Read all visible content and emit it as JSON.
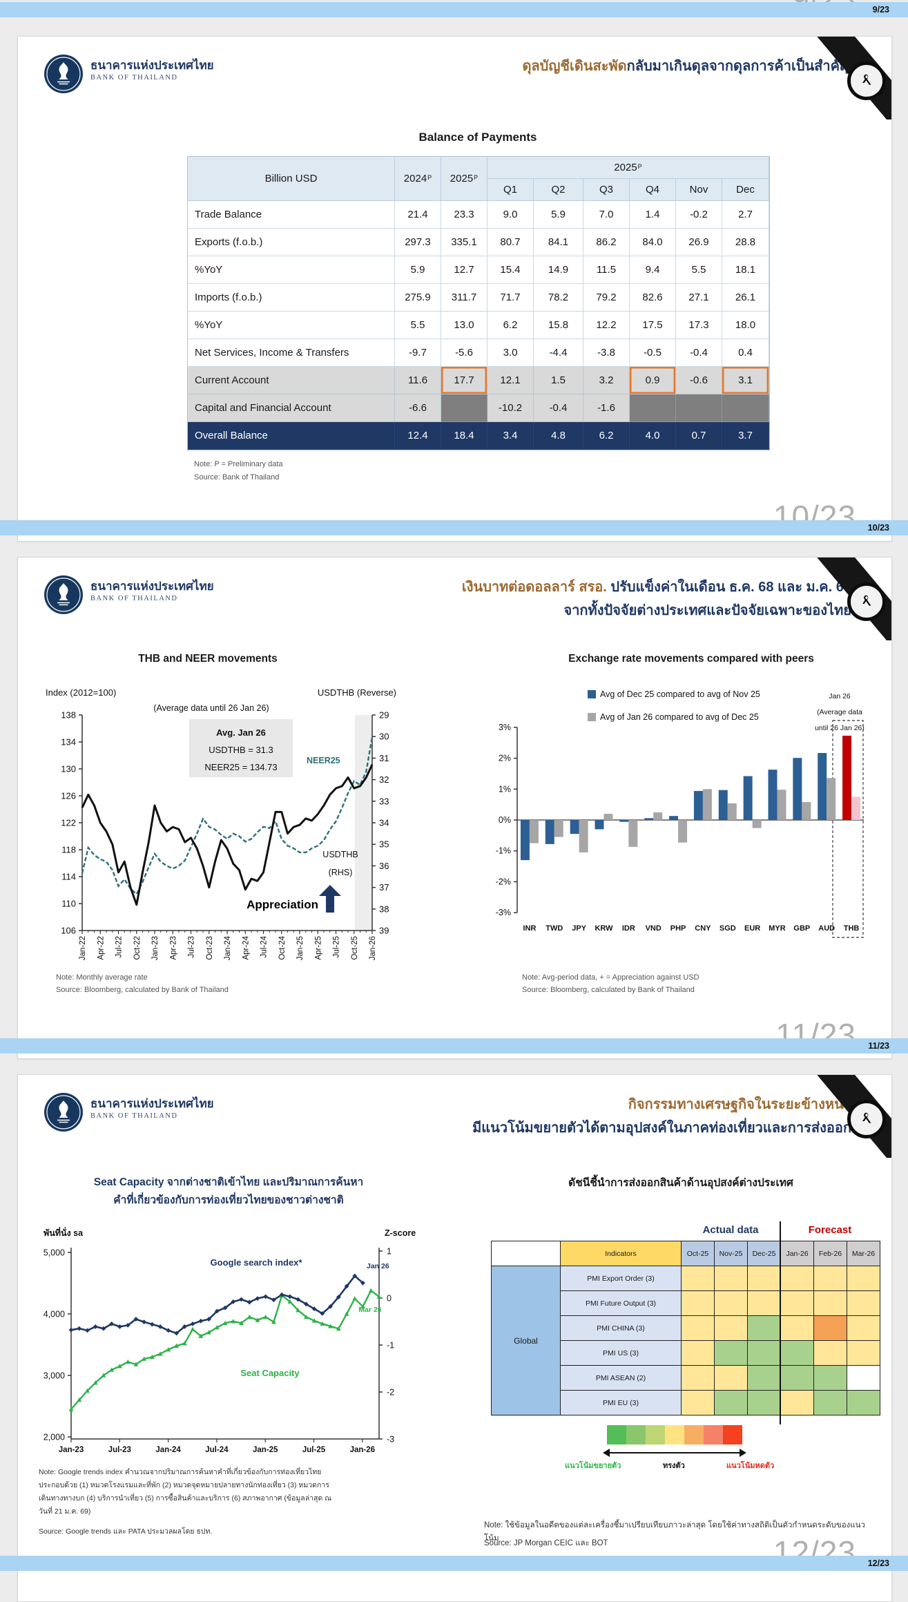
{
  "viewer": {
    "pagebreaks": [
      {
        "big": "9/23",
        "small": "9/23"
      },
      {
        "big": "10/23",
        "small": "10/23"
      },
      {
        "big": "11/23",
        "small": "11/23"
      },
      {
        "big": "12/23",
        "small": "12/23"
      }
    ]
  },
  "brand": {
    "name_th": "ธนาคารแห่งประเทศไทย",
    "name_en": "BANK OF THAILAND"
  },
  "colors": {
    "navy": "#1f3864",
    "brown": "#9c6a32",
    "bar_blue": "#2c5f94",
    "bar_gray": "#a6a6a6",
    "thb_red": "#c00000",
    "thb_pink": "#f2c4ce",
    "neer_teal": "#2e6f7a",
    "green": "#2eb34a",
    "divider_blue": "#a9d4f3",
    "orange_highlight": "#e8782a"
  },
  "slide9": {
    "header_title_brown": "ดุลบัญชีเดินสะพัด",
    "header_title_navy": "กลับมาเกินดุลจากดุลการค้าเป็นสำคัญ",
    "table": {
      "title": "Balance of Payments",
      "corner_label": "Billion USD",
      "year_cols": [
        "2024",
        "2025"
      ],
      "sup": "P",
      "group_col": "2025",
      "sub_cols": [
        "Q1",
        "Q2",
        "Q3",
        "Q4",
        "Nov",
        "Dec"
      ],
      "rows": [
        {
          "label": "Trade Balance",
          "values": [
            "21.4",
            "23.3",
            "9.0",
            "5.9",
            "7.0",
            "1.4",
            "-0.2",
            "2.7"
          ],
          "style": "plain"
        },
        {
          "label": "Exports (f.o.b.)",
          "values": [
            "297.3",
            "335.1",
            "80.7",
            "84.1",
            "86.2",
            "84.0",
            "26.9",
            "28.8"
          ],
          "style": "plain"
        },
        {
          "label": "%YoY",
          "values": [
            "5.9",
            "12.7",
            "15.4",
            "14.9",
            "11.5",
            "9.4",
            "5.5",
            "18.1"
          ],
          "style": "plain"
        },
        {
          "label": "Imports (f.o.b.)",
          "values": [
            "275.9",
            "311.7",
            "71.7",
            "78.2",
            "79.2",
            "82.6",
            "27.1",
            "26.1"
          ],
          "style": "plain"
        },
        {
          "label": "%YoY",
          "values": [
            "5.5",
            "13.0",
            "6.2",
            "15.8",
            "12.2",
            "17.5",
            "17.3",
            "18.0"
          ],
          "style": "plain"
        },
        {
          "label": "Net Services, Income & Transfers",
          "values": [
            "-9.7",
            "-5.6",
            "3.0",
            "-4.4",
            "-3.8",
            "-0.5",
            "-0.4",
            "0.4"
          ],
          "style": "plain"
        },
        {
          "label": "Current Account",
          "values": [
            "11.6",
            "17.7",
            "12.1",
            "1.5",
            "3.2",
            "0.9",
            "-0.6",
            "3.1"
          ],
          "style": "gray",
          "orange": [
            1,
            5,
            7
          ]
        },
        {
          "label": "Capital and Financial Account",
          "values": [
            "-6.6",
            "",
            "-10.2",
            "-0.4",
            "-1.6",
            "",
            "",
            ""
          ],
          "style": "gray",
          "blank": [
            1,
            5,
            6,
            7
          ]
        },
        {
          "label": "Overall Balance",
          "values": [
            "12.4",
            "18.4",
            "3.4",
            "4.8",
            "6.2",
            "4.0",
            "0.7",
            "3.7"
          ],
          "style": "navy"
        }
      ],
      "note": "Note: P = Preliminary data",
      "source": "Source: Bank of Thailand"
    }
  },
  "slide10": {
    "header_title_brown": "เงินบาทต่อดอลลาร์ สรอ.",
    "header_title_navy": " ปรับแข็งค่าในเดือน ธ.ค. 68 และ ม.ค. 69",
    "header_title_line2": "จากทั้งปัจจัยต่างประเทศและปัจจัยเฉพาะของไทย",
    "left_note": "Note: Monthly average rate",
    "left_source": "Source: Bloomberg, calculated by Bank of Thailand",
    "right_note": "Note: Avg-period data, + = Appreciation against USD",
    "right_source": "Source: Bloomberg, calculated by Bank of Thailand"
  },
  "slide11": {
    "header_title_brown": "กิจกรรมทางเศรษฐกิจในระยะข้างหน้า",
    "header_title_line2": "มีแนวโน้มขยายตัวได้ตามอุปสงค์ในภาคท่องเที่ยวและการส่งออก",
    "left_title_line1": "Seat Capacity จากต่างชาติเข้าไทย และปริมาณการค้นหา",
    "left_title_line2": "คำที่เกี่ยวข้องกับการท่องเที่ยวไทยของชาวต่างชาติ",
    "left_note_lines": [
      "Note: Google trends index คำนวณจากปริมาณการค้นหาคำที่เกี่ยวข้องกับการท่องเที่ยวไทย",
      "ประกอบด้วย (1) หมวดโรงแรมและที่พัก (2) หมวดจุดหมายปลายทางนักท่องเที่ยว (3) หมวดการ",
      "เดินทางทางบก (4) บริการนำเที่ยว (5) การซื้อสินค้าและบริการ (6) สภาพอากาศ (ข้อมูลล่าสุด ณ",
      "วันที่ 21 ม.ค. 69)"
    ],
    "left_source": "Source: Google trends และ PATA ประมวลผลโดย ธปท.",
    "right_note": "Note: ใช้ข้อมูลในอดีตของแต่ละเครื่องชี้มาเปรียบเทียบภาวะล่าสุด โดยใช้ค่าทางสถิติเป็นตัวกำหนดระดับของแนวโน้ม",
    "right_source": "Source: JP Morgan CEIC และ BOT"
  },
  "chart_data": [
    {
      "id": "thb_neer",
      "type": "line",
      "title": "THB and NEER movements",
      "left_axis_label": "Index (2012=100)",
      "right_axis_label": "USDTHB (Reverse)",
      "left_ticks": [
        138,
        134,
        130,
        126,
        122,
        118,
        114,
        110,
        106
      ],
      "right_ticks": [
        29,
        30,
        31,
        32,
        33,
        34,
        35,
        36,
        37,
        38,
        39
      ],
      "x_labels": [
        "Jan-22",
        "Apr-22",
        "Jul-22",
        "Oct-22",
        "Jan-23",
        "Apr-23",
        "Jul-23",
        "Oct-23",
        "Jan-24",
        "Apr-24",
        "Jul-24",
        "Oct-24",
        "Jan-25",
        "Apr-25",
        "Jul-25",
        "Oct-25",
        "Jan-26"
      ],
      "annotation": "(Average data until 26 Jan 26)",
      "box_lines": [
        "Avg. Jan 26",
        "USDTHB = 31.3",
        "NEER25 = 134.73"
      ],
      "neer_label": "NEER25",
      "rhs_label_lines": [
        "USDTHB",
        "(RHS)"
      ],
      "appreciation_label": "Appreciation",
      "series": [
        {
          "name": "NEER25",
          "axis": "left",
          "values": [
            114.5,
            118.3,
            117.2,
            116.6,
            116.2,
            115.0,
            112.6,
            113.6,
            112.2,
            111.4,
            113.2,
            115.4,
            117.4,
            116.2,
            115.6,
            115.2,
            115.6,
            116.4,
            118.4,
            120.4,
            122.6,
            121.4,
            121.0,
            120.2,
            119.6,
            120.4,
            120.0,
            119.2,
            119.6,
            120.6,
            121.4,
            121.2,
            122.2,
            119.6,
            118.6,
            118.2,
            117.6,
            117.6,
            118.2,
            118.6,
            119.4,
            121.0,
            122.2,
            124.2,
            126.4,
            128.2,
            127.6,
            129.6,
            134.7
          ]
        },
        {
          "name": "USDTHB",
          "axis": "right_reversed",
          "values": [
            33.3,
            32.7,
            33.2,
            34.0,
            34.4,
            35.0,
            36.3,
            35.8,
            37.0,
            37.8,
            36.3,
            34.9,
            33.2,
            34.0,
            34.4,
            34.2,
            34.3,
            34.9,
            34.7,
            35.2,
            36.0,
            37.0,
            35.8,
            34.8,
            35.2,
            35.9,
            36.2,
            37.1,
            36.6,
            36.7,
            36.3,
            34.9,
            33.5,
            33.5,
            34.5,
            34.2,
            34.1,
            33.8,
            33.9,
            33.6,
            33.2,
            32.7,
            32.4,
            32.3,
            31.9,
            32.4,
            32.3,
            31.9,
            31.3
          ]
        }
      ]
    },
    {
      "id": "fx_peers",
      "type": "bar",
      "title": "Exchange rate movements compared with peers",
      "legend": [
        {
          "label": "Avg of Dec 25 compared to avg of Nov 25",
          "color": "#2c5f94"
        },
        {
          "label": "Avg of Jan 26 compared to avg of Dec 25",
          "color": "#a6a6a6"
        }
      ],
      "annotation_lines": [
        "Jan 26",
        "(Average data",
        "until 26 Jan 26)"
      ],
      "y_tick_labels": [
        "3%",
        "2%",
        "1%",
        "0%",
        "-1%",
        "-2%",
        "-3%"
      ],
      "ylim": [
        -3,
        3
      ],
      "categories": [
        "INR",
        "TWD",
        "JPY",
        "KRW",
        "IDR",
        "VND",
        "PHP",
        "CNY",
        "SGD",
        "EUR",
        "MYR",
        "GBP",
        "AUD",
        "THB"
      ],
      "series": [
        {
          "name": "Avg of Dec 25 compared to avg of Nov 25",
          "values": [
            -1.3,
            -0.78,
            -0.45,
            -0.3,
            -0.06,
            0.06,
            0.13,
            0.94,
            0.97,
            1.42,
            1.63,
            2.01,
            2.17,
            2.73
          ]
        },
        {
          "name": "Avg of Jan 26 compared to avg of Dec 25",
          "values": [
            -0.75,
            -0.55,
            -1.05,
            0.2,
            -0.87,
            0.25,
            -0.73,
            1.0,
            0.54,
            -0.26,
            0.98,
            0.58,
            1.36,
            0.75
          ]
        }
      ],
      "highlight_category": "THB"
    },
    {
      "id": "seat_capacity",
      "type": "line",
      "title": "Seat Capacity and Google search index",
      "left_axis_label": "พันที่นั่ง sa",
      "right_axis_label": "Z-score",
      "left_tick_labels": [
        "5,000",
        "4,000",
        "3,000",
        "2,000"
      ],
      "right_tick_labels": [
        "1",
        "0",
        "-1",
        "-2",
        "-3"
      ],
      "x_labels": [
        "Jan-23",
        "Jul-23",
        "Jan-24",
        "Jul-24",
        "Jan-25",
        "Jul-25",
        "Jan-26"
      ],
      "navy_label": "Google search index*",
      "navy_end_label": "Jan 26",
      "green_label": "Seat Capacity",
      "green_end_label": "Mar 26",
      "series": [
        {
          "name": "Google search index",
          "axis": "zscore",
          "values": [
            -0.65,
            -0.62,
            -0.66,
            -0.58,
            -0.62,
            -0.52,
            -0.58,
            -0.55,
            -0.42,
            -0.48,
            -0.53,
            -0.58,
            -0.66,
            -0.72,
            -0.58,
            -0.52,
            -0.46,
            -0.42,
            -0.25,
            -0.18,
            -0.05,
            0.0,
            -0.06,
            0.02,
            0.06,
            -0.01,
            0.1,
            0.06,
            0.0,
            -0.1,
            -0.2,
            -0.3,
            -0.15,
            0.05,
            0.28,
            0.5,
            0.35
          ]
        },
        {
          "name": "Seat Capacity",
          "axis": "seats",
          "values": [
            2450,
            2600,
            2750,
            2880,
            3000,
            3090,
            3150,
            3220,
            3180,
            3270,
            3300,
            3350,
            3420,
            3480,
            3520,
            3750,
            3640,
            3700,
            3780,
            3850,
            3880,
            3850,
            3950,
            3900,
            3950,
            3870,
            4300,
            4200,
            4060,
            3950,
            3890,
            3840,
            3800,
            3760,
            4000,
            4250,
            4120,
            4380,
            4280
          ]
        }
      ]
    },
    {
      "id": "export_leading_indicators",
      "type": "heatmap",
      "title": "ดัชนีชี้นำการส่งออกสินค้าด้านอุปสงค์ต่างประเทศ",
      "actual_label": "Actual data",
      "forecast_label": "Forecast",
      "indicator_header": "Indicators",
      "month_cols": [
        "Oct-25",
        "Nov-25",
        "Dec-25",
        "Jan-26",
        "Feb-26",
        "Mar-26"
      ],
      "group_label": "Global",
      "rows": [
        {
          "label": "PMI Export Order (3)",
          "cells": [
            "y",
            "y",
            "y",
            "y",
            "y",
            "y"
          ]
        },
        {
          "label": "PMI Future Output (3)",
          "cells": [
            "y",
            "y",
            "y",
            "y",
            "y",
            "y"
          ]
        },
        {
          "label": "PMI CHINA (3)",
          "cells": [
            "y",
            "y",
            "g",
            "y",
            "o",
            "y"
          ]
        },
        {
          "label": "PMI US (3)",
          "cells": [
            "y",
            "g",
            "g",
            "g",
            "y",
            "y"
          ]
        },
        {
          "label": "PMI ASEAN (2)",
          "cells": [
            "y",
            "y",
            "g",
            "g",
            "g",
            "w"
          ]
        },
        {
          "label": "PMI EU (3)",
          "cells": [
            "y",
            "g",
            "g",
            "y",
            "g",
            "g"
          ]
        }
      ],
      "cell_colors": {
        "y": "#ffe699",
        "g": "#a9d18e",
        "o": "#f4a156",
        "w": "#ffffff"
      },
      "scale_colors": [
        "#53be58",
        "#8ac66c",
        "#bdd674",
        "#ffe380",
        "#f8ae62",
        "#f58268",
        "#f4411f"
      ],
      "scale_label_left": "แนวโน้มขยายตัว",
      "scale_label_mid": "ทรงตัว",
      "scale_label_right": "แนวโน้มหดตัว"
    }
  ]
}
